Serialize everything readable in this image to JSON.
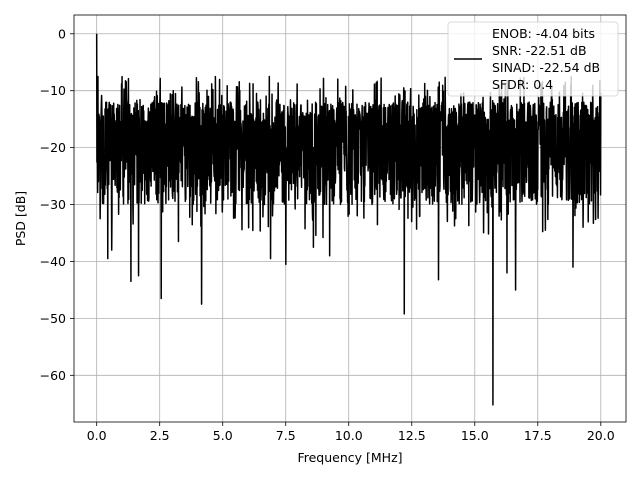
{
  "chart_data": {
    "type": "line",
    "title": "",
    "xlabel": "Frequency [MHz]",
    "ylabel": "PSD [dB]",
    "xlim": [
      -0.9,
      21.0
    ],
    "ylim": [
      -68.2,
      3.3
    ],
    "xticks": [
      0.0,
      2.5,
      5.0,
      7.5,
      10.0,
      12.5,
      15.0,
      17.5,
      20.0
    ],
    "xtick_labels": [
      "0.0",
      "2.5",
      "5.0",
      "7.5",
      "10.0",
      "12.5",
      "15.0",
      "17.5",
      "20.0"
    ],
    "yticks": [
      0,
      -10,
      -20,
      -30,
      -40,
      -50,
      -60
    ],
    "ytick_labels": [
      "0",
      "−10",
      "−20",
      "−30",
      "−40",
      "−50",
      "−60"
    ],
    "grid": true,
    "legend_placement": "top-right",
    "series": [
      {
        "name": "ENOB: -4.04 bits\nSNR: -22.51 dB\nSINAD: -22.54 dB\nSFDR: 0.4",
        "legend_lines": [
          "ENOB: -4.04 bits",
          "SNR: -22.51 dB",
          "SINAD: -22.54 dB",
          "SFDR: 0.4"
        ],
        "color": "#000000",
        "x_range": [
          0.0,
          20.0
        ],
        "num_points": 2048,
        "start_value": 0.0,
        "typical_upper_envelope": -12,
        "typical_lower_envelope": -30,
        "notable_points": [
          {
            "x": 0.0,
            "y": 0.0
          },
          {
            "x": 0.05,
            "y": -7.5
          },
          {
            "x": 0.1,
            "y": -21
          },
          {
            "x": 0.14,
            "y": -32.5
          },
          {
            "x": 0.44,
            "y": -39.5
          },
          {
            "x": 0.6,
            "y": -38
          },
          {
            "x": 1.36,
            "y": -43.5
          },
          {
            "x": 1.66,
            "y": -42.5
          },
          {
            "x": 2.56,
            "y": -46.5
          },
          {
            "x": 3.24,
            "y": -36.5
          },
          {
            "x": 4.16,
            "y": -47.5
          },
          {
            "x": 6.9,
            "y": -39.5
          },
          {
            "x": 7.5,
            "y": -40.5
          },
          {
            "x": 8.6,
            "y": -37.5
          },
          {
            "x": 9.24,
            "y": -39
          },
          {
            "x": 12.2,
            "y": -49.2
          },
          {
            "x": 13.56,
            "y": -43.2
          },
          {
            "x": 15.72,
            "y": -65.2
          },
          {
            "x": 16.28,
            "y": -42
          },
          {
            "x": 16.62,
            "y": -45
          },
          {
            "x": 18.9,
            "y": -41
          }
        ]
      }
    ]
  }
}
